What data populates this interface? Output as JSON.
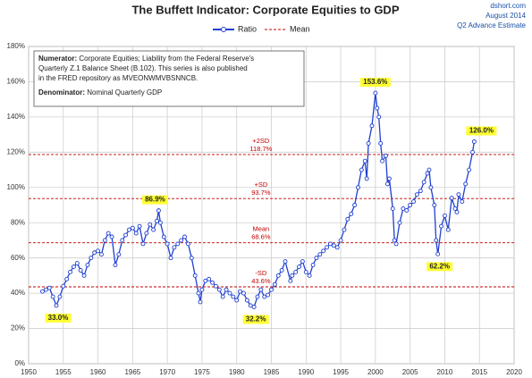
{
  "chart_data": {
    "type": "line",
    "title": "The Buffett Indicator: Corporate Equities to GDP",
    "source_lines": [
      "dshort.com",
      "August 2014",
      "Q2 Advance Estimate"
    ],
    "series": [
      {
        "name": "Ratio",
        "color": "#1f3fd1",
        "x": [
          1952,
          1952.5,
          1953,
          1953.5,
          1954,
          1954.5,
          1955,
          1955.5,
          1956,
          1956.5,
          1957,
          1957.5,
          1958,
          1958.5,
          1959,
          1959.5,
          1960,
          1960.5,
          1961,
          1961.5,
          1962,
          1962.5,
          1963,
          1963.5,
          1964,
          1964.5,
          1965,
          1965.5,
          1966,
          1966.5,
          1967,
          1967.5,
          1968,
          1968.5,
          1968.75,
          1969,
          1969.5,
          1970,
          1970.5,
          1971,
          1971.5,
          1972,
          1972.5,
          1973,
          1973.5,
          1974,
          1974.5,
          1974.75,
          1975,
          1975.5,
          1976,
          1976.5,
          1977,
          1977.5,
          1978,
          1978.5,
          1979,
          1979.5,
          1980,
          1980.5,
          1981,
          1981.5,
          1982,
          1982.5,
          1983,
          1983.5,
          1984,
          1984.5,
          1985,
          1985.5,
          1986,
          1986.5,
          1987,
          1987.75,
          1988,
          1988.5,
          1989,
          1989.5,
          1990,
          1990.5,
          1991,
          1991.5,
          1992,
          1992.5,
          1993,
          1993.5,
          1994,
          1994.5,
          1995,
          1995.5,
          1996,
          1996.5,
          1997,
          1997.5,
          1998,
          1998.5,
          1998.75,
          1999,
          1999.5,
          2000,
          2000.25,
          2000.5,
          2000.75,
          2001,
          2001.5,
          2001.75,
          2002,
          2002.5,
          2002.75,
          2003,
          2003.5,
          2004,
          2004.5,
          2005,
          2005.5,
          2006,
          2006.5,
          2007,
          2007.5,
          2007.75,
          2008,
          2008.5,
          2008.75,
          2009,
          2009.5,
          2010,
          2010.5,
          2011,
          2011.5,
          2011.75,
          2012,
          2012.5,
          2013,
          2013.5,
          2014,
          2014.25
        ],
        "values": [
          41,
          42,
          43,
          38,
          33,
          38,
          44,
          48,
          52,
          55,
          57,
          53,
          50,
          56,
          60,
          63,
          64,
          62,
          70,
          74,
          72,
          56,
          62,
          70,
          73,
          76,
          77,
          74,
          78,
          68,
          74,
          79,
          76,
          81,
          86.9,
          80,
          72,
          68,
          60,
          66,
          68,
          70,
          72,
          68,
          60,
          50,
          40,
          35,
          42,
          47,
          48,
          46,
          44,
          42,
          38,
          42,
          40,
          38,
          36,
          41,
          40,
          36,
          33,
          32.2,
          38,
          42,
          38,
          39,
          42,
          45,
          50,
          53,
          58,
          47,
          50,
          52,
          55,
          58,
          52,
          50,
          56,
          60,
          62,
          64,
          66,
          68,
          67,
          66,
          70,
          76,
          82,
          85,
          90,
          100,
          110,
          115,
          105,
          125,
          135,
          153.6,
          145,
          140,
          125,
          115,
          118,
          102,
          105,
          88,
          70,
          68,
          80,
          88,
          87,
          90,
          92,
          96,
          98,
          103,
          108,
          110,
          100,
          90,
          70,
          62.2,
          78,
          84,
          76,
          94,
          88,
          86,
          96,
          92,
          102,
          110,
          120,
          126.0
        ]
      },
      {
        "name": "Mean",
        "color": "#c00000"
      }
    ],
    "reference_lines": [
      {
        "name": "+2SD",
        "value": 118.7,
        "label": "118.7%"
      },
      {
        "name": "+SD",
        "value": 93.7,
        "label": "93.7%"
      },
      {
        "name": "Mean",
        "value": 68.6,
        "label": "68.6%"
      },
      {
        "name": "-SD",
        "value": 43.6,
        "label": "43.6%"
      }
    ],
    "annotations": [
      {
        "x": 1954,
        "value": 33.0,
        "label": "33.0%"
      },
      {
        "x": 1968.75,
        "value": 86.9,
        "label": "86.9%"
      },
      {
        "x": 1982.5,
        "value": 32.2,
        "label": "32.2%"
      },
      {
        "x": 2000,
        "value": 153.6,
        "label": "153.6%"
      },
      {
        "x": 2009,
        "value": 62.2,
        "label": "62.2%"
      },
      {
        "x": 2014.25,
        "value": 126.0,
        "label": "126.0%"
      }
    ],
    "note": {
      "numerator_label": "Numerator:",
      "numerator_lines": [
        " Corporate Equities; Liability from the Federal Reserve's",
        "Quarterly Z.1 Balance Sheet (B.102). This series is also published",
        "in the FRED repository  as MVEONWMVBSNNCB."
      ],
      "denominator_label": "Denominator:",
      "denominator_text": " Nominal Quarterly GDP"
    },
    "xlim": [
      1950,
      2020
    ],
    "xticks": [
      1950,
      1955,
      1960,
      1965,
      1970,
      1975,
      1980,
      1985,
      1990,
      1995,
      2000,
      2005,
      2010,
      2015,
      2020
    ],
    "ylim": [
      0,
      180
    ],
    "yticks": [
      {
        "value": 0,
        "label": "0%"
      },
      {
        "value": 20,
        "label": "20%"
      },
      {
        "value": 40,
        "label": "40%"
      },
      {
        "value": 60,
        "label": "60%"
      },
      {
        "value": 80,
        "label": "80%"
      },
      {
        "value": 100,
        "label": "100%"
      },
      {
        "value": 120,
        "label": "120%"
      },
      {
        "value": 140,
        "label": "140%"
      },
      {
        "value": 160,
        "label": "160%"
      },
      {
        "value": 180,
        "label": "180%"
      }
    ],
    "grid": true
  }
}
